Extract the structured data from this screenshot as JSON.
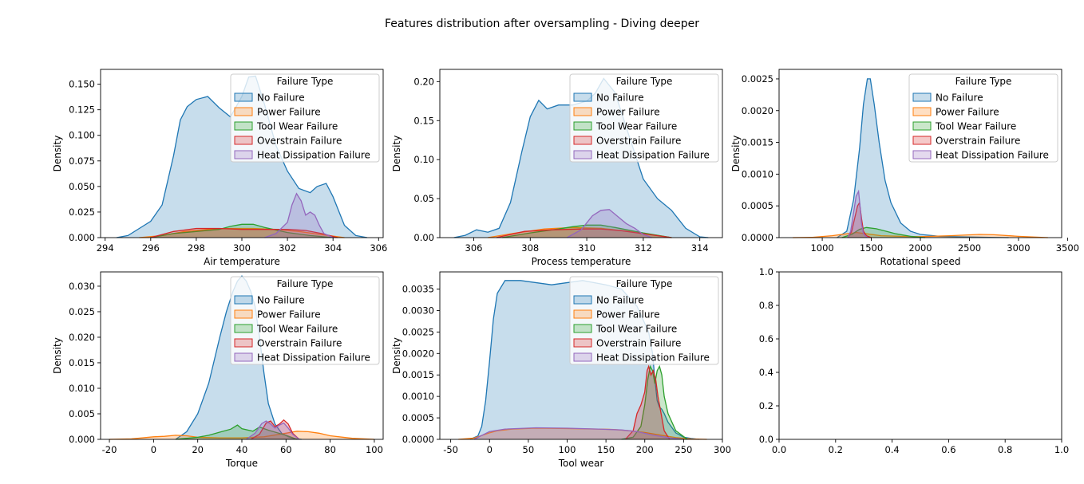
{
  "figure": {
    "title": "Features distribution after oversampling - Diving deeper"
  },
  "colors": {
    "No Failure": "#1f77b4",
    "Power Failure": "#ff7f0e",
    "Tool Wear Failure": "#2ca02c",
    "Overstrain Failure": "#d62728",
    "Heat Dissipation Failure": "#9467bd"
  },
  "legend": {
    "title": "Failure Type",
    "placement": "upper-right",
    "entries": [
      "No Failure",
      "Power Failure",
      "Tool Wear Failure",
      "Overstrain Failure",
      "Heat Dissipation Failure"
    ]
  },
  "chart_data": [
    {
      "type": "area",
      "xlabel": "Air temperature",
      "ylabel": "Density",
      "xlim": [
        293.8,
        306.2
      ],
      "ylim": [
        0,
        0.1645
      ],
      "xticks": [
        294,
        296,
        298,
        300,
        302,
        304,
        306
      ],
      "yticks": [
        0,
        0.025,
        0.05,
        0.075,
        0.1,
        0.125,
        0.15
      ],
      "ytick_labels": [
        "0.000",
        "0.025",
        "0.050",
        "0.075",
        "0.100",
        "0.125",
        "0.150"
      ],
      "series": [
        {
          "name": "No Failure",
          "x": [
            294.5,
            295.0,
            295.5,
            296.0,
            296.5,
            297.0,
            297.3,
            297.6,
            298.0,
            298.5,
            299.0,
            299.5,
            300.0,
            300.3,
            300.6,
            301.0,
            301.5,
            302.0,
            302.5,
            303.0,
            303.3,
            303.7,
            304.0,
            304.5,
            305.0,
            305.5
          ],
          "y": [
            0,
            0.002,
            0.009,
            0.016,
            0.032,
            0.08,
            0.115,
            0.128,
            0.135,
            0.138,
            0.127,
            0.118,
            0.138,
            0.157,
            0.158,
            0.13,
            0.09,
            0.065,
            0.048,
            0.044,
            0.05,
            0.053,
            0.04,
            0.012,
            0.002,
            0
          ]
        },
        {
          "name": "Power Failure",
          "x": [
            295.5,
            296.5,
            297.5,
            298.5,
            299.5,
            300.5,
            301.5,
            302.5,
            303.5,
            304.5
          ],
          "y": [
            0,
            0.002,
            0.006,
            0.008,
            0.009,
            0.009,
            0.008,
            0.006,
            0.003,
            0
          ]
        },
        {
          "name": "Tool Wear Failure",
          "x": [
            296.0,
            297.0,
            298.0,
            299.0,
            299.5,
            300.0,
            300.5,
            301.0,
            302.0,
            303.0,
            304.0
          ],
          "y": [
            0,
            0.004,
            0.006,
            0.008,
            0.011,
            0.013,
            0.013,
            0.01,
            0.005,
            0.002,
            0
          ]
        },
        {
          "name": "Overstrain Failure",
          "x": [
            296.0,
            297.0,
            298.0,
            299.0,
            300.0,
            301.0,
            302.0,
            302.8,
            303.5,
            304.2
          ],
          "y": [
            0,
            0.006,
            0.009,
            0.009,
            0.008,
            0.008,
            0.008,
            0.007,
            0.004,
            0
          ]
        },
        {
          "name": "Heat Dissipation Failure",
          "x": [
            301.0,
            301.5,
            302.0,
            302.2,
            302.4,
            302.6,
            302.8,
            303.0,
            303.2,
            303.4,
            303.6,
            304.0
          ],
          "y": [
            0,
            0.004,
            0.015,
            0.032,
            0.043,
            0.036,
            0.022,
            0.025,
            0.022,
            0.012,
            0.004,
            0
          ]
        }
      ]
    },
    {
      "type": "area",
      "xlabel": "Process temperature",
      "ylabel": "Density",
      "xlim": [
        304.8,
        314.8
      ],
      "ylim": [
        0,
        0.2157
      ],
      "xticks": [
        306,
        308,
        310,
        312,
        314
      ],
      "yticks": [
        0,
        0.05,
        0.1,
        0.15,
        0.2
      ],
      "ytick_labels": [
        "0.00",
        "0.05",
        "0.10",
        "0.15",
        "0.20"
      ],
      "series": [
        {
          "name": "No Failure",
          "x": [
            305.3,
            305.7,
            306.1,
            306.5,
            306.9,
            307.3,
            307.7,
            308.0,
            308.3,
            308.6,
            309.0,
            309.5,
            310.0,
            310.3,
            310.6,
            311.0,
            311.5,
            312.0,
            312.5,
            313.0,
            313.5,
            314.0,
            314.3
          ],
          "y": [
            0,
            0.003,
            0.01,
            0.007,
            0.012,
            0.045,
            0.11,
            0.155,
            0.176,
            0.165,
            0.17,
            0.17,
            0.175,
            0.185,
            0.204,
            0.186,
            0.13,
            0.075,
            0.05,
            0.035,
            0.012,
            0.001,
            0
          ]
        },
        {
          "name": "Power Failure",
          "x": [
            306.5,
            307.5,
            308.5,
            309.5,
            310.5,
            311.5,
            312.5,
            313.0
          ],
          "y": [
            0,
            0.006,
            0.011,
            0.013,
            0.012,
            0.008,
            0.003,
            0
          ]
        },
        {
          "name": "Tool Wear Failure",
          "x": [
            307.0,
            308.0,
            309.0,
            309.5,
            310.0,
            310.5,
            311.0,
            312.0,
            313.0
          ],
          "y": [
            0,
            0.006,
            0.011,
            0.014,
            0.016,
            0.016,
            0.013,
            0.006,
            0
          ]
        },
        {
          "name": "Overstrain Failure",
          "x": [
            306.8,
            307.8,
            308.8,
            309.8,
            310.5,
            311.2,
            312.0,
            313.0
          ],
          "y": [
            0,
            0.008,
            0.01,
            0.011,
            0.011,
            0.009,
            0.005,
            0
          ]
        },
        {
          "name": "Heat Dissipation Failure",
          "x": [
            309.3,
            309.8,
            310.2,
            310.5,
            310.8,
            311.1,
            311.4,
            311.7,
            312.0,
            312.3
          ],
          "y": [
            0,
            0.01,
            0.028,
            0.035,
            0.036,
            0.027,
            0.018,
            0.012,
            0.004,
            0
          ]
        }
      ]
    },
    {
      "type": "area",
      "xlabel": "Rotational speed",
      "ylabel": "Density",
      "xlim": [
        560,
        3440
      ],
      "ylim": [
        0,
        0.00265
      ],
      "xticks": [
        1000,
        1500,
        2000,
        2500,
        3000,
        3500
      ],
      "yticks": [
        0,
        0.0005,
        0.001,
        0.0015,
        0.002,
        0.0025
      ],
      "ytick_labels": [
        "0.0000",
        "0.0005",
        "0.0010",
        "0.0015",
        "0.0020",
        "0.0025"
      ],
      "series": [
        {
          "name": "No Failure",
          "x": [
            1150,
            1250,
            1320,
            1380,
            1420,
            1460,
            1490,
            1530,
            1580,
            1640,
            1700,
            1800,
            1900,
            2000,
            2200,
            2500,
            2700,
            2900
          ],
          "y": [
            0,
            0.0001,
            0.0006,
            0.0014,
            0.0021,
            0.0025,
            0.0025,
            0.0021,
            0.0015,
            0.0009,
            0.00055,
            0.00023,
            0.0001,
            5e-05,
            2e-05,
            1e-05,
            5e-06,
            0
          ]
        },
        {
          "name": "Power Failure",
          "x": [
            700,
            900,
            1100,
            1250,
            1350,
            1450,
            1600,
            1800,
            2000,
            2300,
            2600,
            2750,
            3000,
            3300
          ],
          "y": [
            0,
            5e-06,
            3e-05,
            6e-05,
            8e-05,
            6e-05,
            3e-05,
            2e-05,
            1.5e-05,
            3e-05,
            5e-05,
            4.5e-05,
            2e-05,
            0
          ]
        },
        {
          "name": "Tool Wear Failure",
          "x": [
            1200,
            1300,
            1380,
            1450,
            1550,
            1650,
            1750,
            1900,
            2050
          ],
          "y": [
            0,
            5e-05,
            0.00013,
            0.00016,
            0.00014,
            0.0001,
            6e-05,
            2e-05,
            0
          ]
        },
        {
          "name": "Overstrain Failure",
          "x": [
            1260,
            1300,
            1330,
            1360,
            1380,
            1400,
            1420,
            1450,
            1500
          ],
          "y": [
            0,
            0.0001,
            0.0003,
            0.0005,
            0.00055,
            0.0003,
            0.0001,
            3e-05,
            0
          ]
        },
        {
          "name": "Heat Dissipation Failure",
          "x": [
            1260,
            1290,
            1320,
            1345,
            1370,
            1385,
            1400,
            1420,
            1460
          ],
          "y": [
            0,
            0.0001,
            0.0004,
            0.00065,
            0.00073,
            0.0005,
            0.00022,
            6e-05,
            0
          ]
        }
      ]
    },
    {
      "type": "area",
      "xlabel": "Torque",
      "ylabel": "Density",
      "xlim": [
        -24,
        104
      ],
      "ylim": [
        0,
        0.0328
      ],
      "xticks": [
        -20,
        0,
        20,
        40,
        60,
        80,
        100
      ],
      "yticks": [
        0,
        0.005,
        0.01,
        0.015,
        0.02,
        0.025,
        0.03
      ],
      "ytick_labels": [
        "0.000",
        "0.005",
        "0.010",
        "0.015",
        "0.020",
        "0.025",
        "0.030"
      ],
      "series": [
        {
          "name": "No Failure",
          "x": [
            10,
            15,
            20,
            25,
            30,
            33,
            36,
            38,
            40,
            42,
            44,
            46,
            48,
            50,
            52,
            55,
            58,
            61,
            64,
            67
          ],
          "y": [
            0,
            0.0015,
            0.005,
            0.011,
            0.02,
            0.025,
            0.029,
            0.031,
            0.032,
            0.031,
            0.029,
            0.026,
            0.02,
            0.013,
            0.007,
            0.003,
            0.0012,
            0.0005,
            0.0001,
            0
          ]
        },
        {
          "name": "Power Failure",
          "x": [
            -20,
            -10,
            0,
            5,
            10,
            15,
            20,
            30,
            40,
            50,
            60,
            65,
            70,
            75,
            80,
            90,
            100
          ],
          "y": [
            0,
            0.0001,
            0.0005,
            0.0006,
            0.0008,
            0.0007,
            0.0004,
            0.0003,
            0.0003,
            0.0005,
            0.0012,
            0.0016,
            0.0015,
            0.0012,
            0.0007,
            0.0002,
            0
          ]
        },
        {
          "name": "Tool Wear Failure",
          "x": [
            10,
            20,
            25,
            30,
            35,
            38,
            40,
            45,
            48,
            52,
            56,
            60,
            65
          ],
          "y": [
            0,
            0.0004,
            0.0008,
            0.0014,
            0.002,
            0.0028,
            0.0021,
            0.0016,
            0.0024,
            0.0018,
            0.0013,
            0.0008,
            0
          ]
        },
        {
          "name": "Overstrain Failure",
          "x": [
            44,
            48,
            51,
            53,
            55,
            57,
            59,
            61,
            63,
            66
          ],
          "y": [
            0,
            0.001,
            0.0032,
            0.0036,
            0.0025,
            0.003,
            0.0038,
            0.003,
            0.0012,
            0
          ]
        },
        {
          "name": "Heat Dissipation Failure",
          "x": [
            42,
            46,
            49,
            51,
            53,
            55,
            57,
            59,
            61,
            63,
            66
          ],
          "y": [
            0,
            0.0012,
            0.0031,
            0.0036,
            0.003,
            0.0022,
            0.0028,
            0.0032,
            0.0022,
            0.001,
            0
          ]
        }
      ]
    },
    {
      "type": "area",
      "xlabel": "Tool wear",
      "ylabel": "Density",
      "xlim": [
        -64,
        300
      ],
      "ylim": [
        0,
        0.0039
      ],
      "xticks": [
        -50,
        0,
        50,
        100,
        150,
        200,
        250,
        300
      ],
      "yticks": [
        0,
        0.0005,
        0.001,
        0.0015,
        0.002,
        0.0025,
        0.003,
        0.0035
      ],
      "ytick_labels": [
        "0.0000",
        "0.0005",
        "0.0010",
        "0.0015",
        "0.0020",
        "0.0025",
        "0.0030",
        "0.0035"
      ],
      "series": [
        {
          "name": "No Failure",
          "x": [
            -25,
            -15,
            -10,
            -5,
            0,
            5,
            10,
            20,
            40,
            80,
            120,
            150,
            170,
            190,
            205,
            210,
            213,
            216,
            219,
            222,
            225,
            230,
            240,
            250,
            260,
            270
          ],
          "y": [
            0,
            8e-05,
            0.0003,
            0.0009,
            0.0018,
            0.0028,
            0.0034,
            0.0037,
            0.0037,
            0.0036,
            0.0037,
            0.0036,
            0.0035,
            0.0031,
            0.0025,
            0.002,
            0.0014,
            0.0009,
            0.00075,
            0.0007,
            0.0006,
            0.0004,
            0.00015,
            5e-05,
            2e-05,
            0
          ]
        },
        {
          "name": "Power Failure",
          "x": [
            -40,
            -20,
            0,
            10,
            30,
            60,
            100,
            140,
            160,
            180,
            200,
            220,
            240,
            260,
            280
          ],
          "y": [
            0,
            3e-05,
            0.00015,
            0.0002,
            0.00024,
            0.00026,
            0.00025,
            0.00024,
            0.00023,
            0.0002,
            0.00016,
            0.0001,
            4e-05,
            1e-05,
            0
          ]
        },
        {
          "name": "Tool Wear Failure",
          "x": [
            170,
            185,
            195,
            200,
            204,
            207,
            210,
            213,
            216,
            219,
            222,
            225,
            230,
            240,
            255
          ],
          "y": [
            0,
            5e-05,
            0.0003,
            0.0008,
            0.0014,
            0.0017,
            0.0016,
            0.0013,
            0.0016,
            0.0017,
            0.0015,
            0.001,
            0.0006,
            0.0002,
            0
          ]
        },
        {
          "name": "Overstrain Failure",
          "x": [
            175,
            185,
            190,
            195,
            200,
            203,
            205,
            208,
            211,
            214,
            217,
            221,
            225,
            232
          ],
          "y": [
            0,
            0.0002,
            0.0006,
            0.0008,
            0.0011,
            0.0016,
            0.0017,
            0.0015,
            0.0016,
            0.0014,
            0.001,
            0.0006,
            0.0002,
            0
          ]
        },
        {
          "name": "Heat Dissipation Failure",
          "x": [
            -20,
            0,
            20,
            60,
            100,
            140,
            170,
            190,
            210,
            230,
            250
          ],
          "y": [
            0,
            0.00018,
            0.00024,
            0.00027,
            0.00026,
            0.00024,
            0.00022,
            0.00018,
            0.0001,
            4e-05,
            0
          ]
        }
      ]
    },
    {
      "type": "area",
      "empty": true,
      "xlim": [
        0,
        1
      ],
      "ylim": [
        0,
        1
      ],
      "xticks": [
        0,
        0.2,
        0.4,
        0.6,
        0.8,
        1.0
      ],
      "yticks": [
        0,
        0.2,
        0.4,
        0.6,
        0.8,
        1.0
      ],
      "xtick_labels": [
        "0.0",
        "0.2",
        "0.4",
        "0.6",
        "0.8",
        "1.0"
      ],
      "ytick_labels": [
        "0.0",
        "0.2",
        "0.4",
        "0.6",
        "0.8",
        "1.0"
      ],
      "series": []
    }
  ]
}
